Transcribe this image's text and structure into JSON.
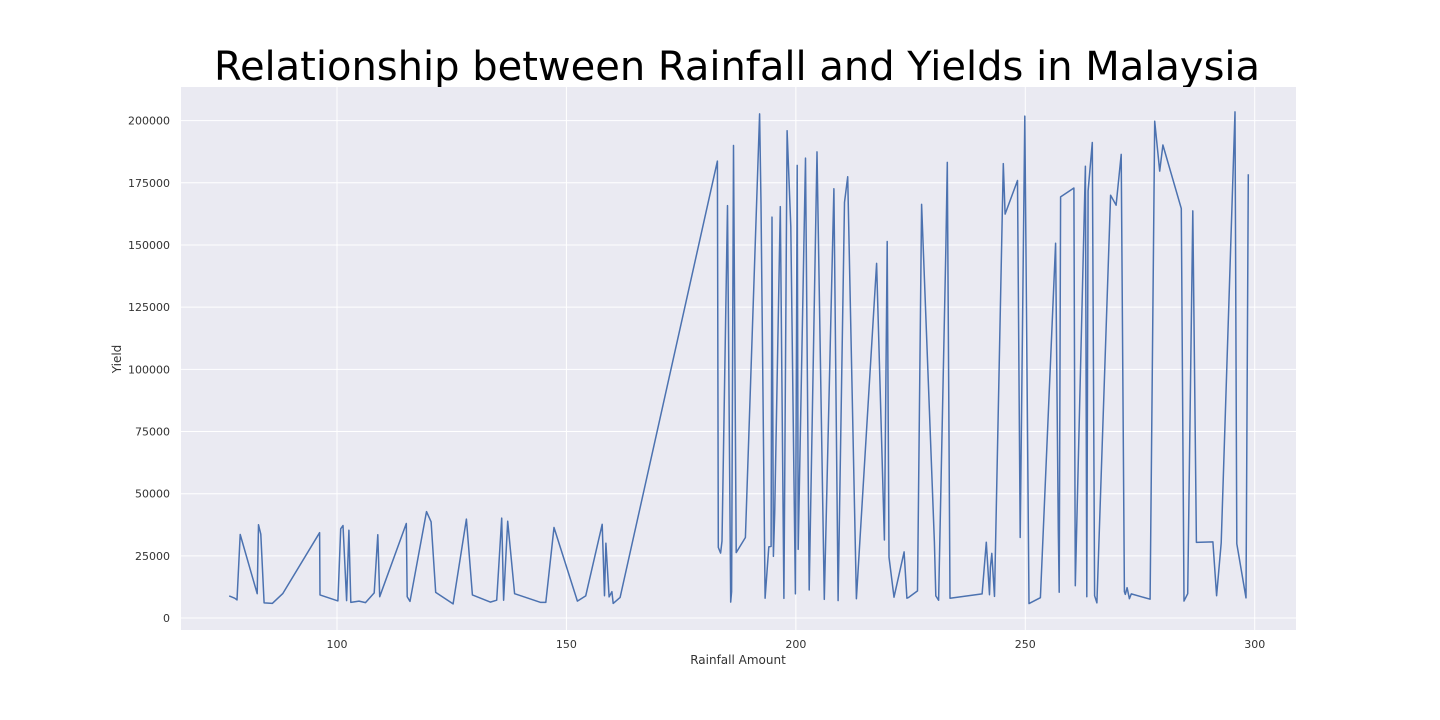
{
  "chart_data": {
    "type": "line",
    "title": "Relationship between Rainfall and Yields in Malaysia",
    "xlabel": "Rainfall Amount",
    "ylabel": "Yield",
    "xlim": [
      66,
      309
    ],
    "ylim": [
      -4800,
      213500
    ],
    "x_ticks": [
      100,
      150,
      200,
      250,
      300
    ],
    "y_ticks": [
      0,
      25000,
      50000,
      75000,
      100000,
      125000,
      150000,
      175000,
      200000
    ],
    "grid": true,
    "colors": {
      "plot_background": "#eaeaf2",
      "grid": "#ffffff",
      "line": "#4c72b0"
    },
    "series": [
      {
        "x": [
          76.5,
          77.7,
          78.2,
          78.9,
          82.6,
          82.9,
          83.4,
          84.1,
          85.9,
          88.2,
          96.2,
          96.3,
          100.2,
          100.8,
          101.3,
          102.1,
          102.6,
          103.0,
          104.8,
          106.2,
          108.1,
          108.9,
          109.3,
          115.1,
          115.3,
          115.9,
          119.5,
          120.5,
          121.5,
          125.3,
          128.2,
          129.5,
          133.4,
          134.8,
          135.9,
          136.3,
          137.2,
          138.7,
          144.4,
          145.5,
          147.3,
          152.4,
          154.2,
          157.8,
          158.3,
          158.6,
          159.3,
          159.9,
          160.2,
          161.7,
          182.9,
          183.1,
          183.6,
          183.9,
          185.1,
          185.8,
          186.0,
          186.4,
          187.0,
          189.0,
          192.1,
          192.4,
          193.3,
          194.1,
          194.6,
          194.8,
          195.1,
          195.4,
          196.6,
          197.4,
          198.1,
          198.9,
          199.9,
          200.3,
          200.5,
          202.1,
          202.9,
          204.6,
          206.2,
          208.3,
          209.2,
          210.6,
          211.3,
          213.2,
          217.6,
          219.3,
          219.9,
          220.3,
          221.4,
          223.6,
          224.2,
          224.6,
          226.5,
          227.4,
          230.2,
          230.5,
          231.1,
          232.7,
          233.0,
          233.6,
          240.6,
          241.5,
          242.2,
          242.4,
          242.7,
          243.3,
          245.2,
          245.6,
          248.3,
          248.9,
          249.9,
          250.8,
          253.3,
          256.6,
          257.2,
          257.4,
          257.7,
          260.6,
          260.9,
          263.1,
          263.4,
          263.7,
          264.6,
          265.1,
          265.6,
          268.6,
          269.8,
          270.9,
          271.6,
          271.8,
          272.2,
          272.7,
          273.1,
          277.2,
          278.2,
          279.3,
          280.0,
          284.0,
          284.6,
          285.4,
          286.5,
          287.3,
          290.9,
          291.7,
          292.7,
          295.7,
          296.1,
          298.1,
          298.6
        ],
        "y": [
          8900,
          8000,
          7300,
          33600,
          9800,
          37500,
          33700,
          6100,
          5900,
          9900,
          34300,
          9300,
          6900,
          35900,
          37200,
          7000,
          35300,
          6300,
          6800,
          6200,
          10100,
          33500,
          8600,
          38000,
          8600,
          6700,
          42800,
          38700,
          10300,
          5700,
          39800,
          9300,
          6400,
          7200,
          40200,
          7200,
          38900,
          9800,
          6300,
          6300,
          36400,
          6800,
          8900,
          37700,
          9000,
          30100,
          8500,
          10600,
          5900,
          8300,
          183700,
          28400,
          26100,
          31000,
          165800,
          6400,
          10600,
          190000,
          26300,
          32400,
          202700,
          166800,
          8000,
          28600,
          28800,
          161200,
          24800,
          42300,
          165400,
          7900,
          195900,
          157400,
          9700,
          182000,
          27600,
          184900,
          11300,
          187400,
          7500,
          172600,
          7000,
          167100,
          177400,
          7800,
          142600,
          31400,
          151400,
          24500,
          8400,
          26600,
          8000,
          8300,
          10900,
          166300,
          30400,
          8900,
          7200,
          149600,
          183200,
          8000,
          9700,
          30500,
          9400,
          20400,
          26000,
          8700,
          182700,
          162400,
          175900,
          32400,
          201800,
          5800,
          8200,
          150700,
          35300,
          10400,
          169300,
          172900,
          13000,
          181600,
          8600,
          171700,
          191200,
          9000,
          6100,
          170000,
          166000,
          186400,
          10600,
          9500,
          12200,
          7800,
          9700,
          7600,
          199700,
          179700,
          190200,
          164600,
          6800,
          9800,
          163700,
          30400,
          30600,
          9000,
          30200,
          203500,
          29900,
          8100,
          178400
        ]
      }
    ]
  }
}
